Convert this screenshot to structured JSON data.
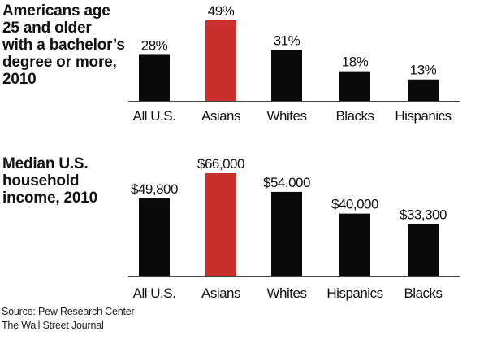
{
  "chart_data": [
    {
      "type": "bar",
      "title": "Americans age\n25 and older\nwith a bachelor’s\ndegree or more,\n2010",
      "categories": [
        "All U.S.",
        "Asians",
        "Whites",
        "Blacks",
        "Hispanics"
      ],
      "values": [
        28,
        49,
        31,
        18,
        13
      ],
      "value_labels": [
        "28%",
        "49%",
        "31%",
        "18%",
        "13%"
      ],
      "highlight_index": 1,
      "ylim": [
        0,
        49
      ],
      "grid": false,
      "xlabel": "",
      "ylabel": ""
    },
    {
      "type": "bar",
      "title": "Median U.S.\nhousehold\nincome, 2010",
      "categories": [
        "All U.S.",
        "Asians",
        "Whites",
        "Hispanics",
        "Blacks"
      ],
      "values": [
        49800,
        66000,
        54000,
        40000,
        33300
      ],
      "value_labels": [
        "$49,800",
        "$66,000",
        "$54,000",
        "$40,000",
        "$33,300"
      ],
      "highlight_index": 1,
      "ylim": [
        0,
        66000
      ],
      "grid": false,
      "xlabel": "",
      "ylabel": ""
    }
  ],
  "colors": {
    "bar": "#0a0a0a",
    "highlight": "#c9302c",
    "axis": "#444444",
    "text": "#111111"
  },
  "source": {
    "line1": "Source: Pew Research Center",
    "line2": "The Wall Street Journal"
  }
}
